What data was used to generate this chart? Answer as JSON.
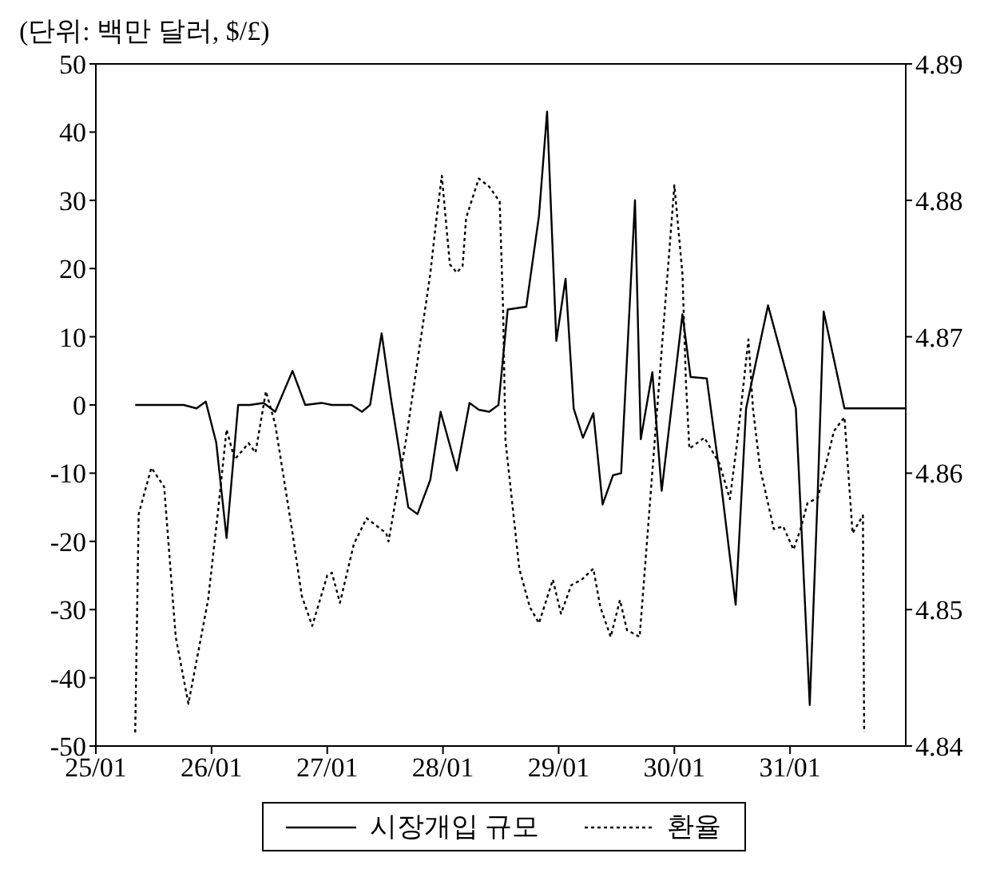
{
  "chart_data": {
    "type": "line",
    "annotations": [
      "(단위: 백만 달러, $/£)"
    ],
    "xlim": [
      "--01-25",
      "--02-01"
    ],
    "xticks": [
      {
        "value": "--01-25",
        "label": "25/01"
      },
      {
        "value": "--01-26",
        "label": "26/01"
      },
      {
        "value": "--01-27",
        "label": "27/01"
      },
      {
        "value": "--01-28",
        "label": "28/01"
      },
      {
        "value": "--01-29",
        "label": "29/01"
      },
      {
        "value": "--01-30",
        "label": "30/01"
      },
      {
        "value": "--01-31",
        "label": "31/01"
      }
    ],
    "ylim": [
      -50,
      50
    ],
    "yticks": [
      -50,
      -40,
      -30,
      -20,
      -10,
      0,
      10,
      20,
      30,
      40,
      50
    ],
    "y2lim": [
      4.84,
      4.89
    ],
    "y2ticks": [
      4.84,
      4.85,
      4.86,
      4.87,
      4.88,
      4.89
    ],
    "grid": false,
    "legend": "bottom",
    "marker": "none",
    "series": [
      {
        "name": "시장개입 규모",
        "color": "#000000",
        "line_style": "solid",
        "x": [
          "--01-25T08:10",
          "--01-25T18:14",
          "--01-25T20:53",
          "--01-25T22:48",
          "--01-26T00:58",
          "--01-26T03:07",
          "--01-26T05:31",
          "--01-26T07:55",
          "--01-26T10:48",
          "--01-26T13:12",
          "--01-26T16:48",
          "--01-26T19:26",
          "--01-26T22:48",
          "--01-27T00:58",
          "--01-27T05:02",
          "--01-27T07:12",
          "--01-27T08:53",
          "--01-27T11:17",
          "--01-27T13:12",
          "--01-27T16:48",
          "--01-27T18:43",
          "--01-27T21:22",
          "--01-27T23:31",
          "--01-28T02:53",
          "--01-28T05:31",
          "--01-28T07:26",
          "--01-28T09:36",
          "--01-28T11:31",
          "--01-28T13:26",
          "--01-28T17:17",
          "--01-28T19:55",
          "--01-28T21:36",
          "--01-28T23:31",
          "--01-29T01:26",
          "--01-29T03:07",
          "--01-29T05:02",
          "--01-29T07:12",
          "--01-29T09:07",
          "--01-29T11:17",
          "--01-29T12:58",
          "--01-29T15:50",
          "--01-29T17:02",
          "--01-29T19:26",
          "--01-29T21:22",
          "--01-30T01:41",
          "--01-30T03:22",
          "--01-30T06:43",
          "--01-30T09:50",
          "--01-30T12:43",
          "--01-30T14:53",
          "--01-30T19:26",
          "--01-31T01:12",
          "--01-31T04:05",
          "--01-31T05:46",
          "--01-31T06:58",
          "--01-31T11:17",
          "--02-01T00:00"
        ],
        "values": [
          0,
          0,
          -0.5,
          0.5,
          -5.5,
          -19.5,
          0,
          0,
          0.3,
          -1,
          5,
          0,
          0.3,
          0,
          0,
          -1,
          0,
          10.5,
          1,
          -15,
          -16,
          -11,
          -1,
          -9.6,
          0.3,
          -0.7,
          -1,
          0,
          14,
          14.4,
          27.7,
          43,
          9.4,
          18.5,
          -0.5,
          -4.8,
          -1.2,
          -14.6,
          -10.3,
          -10,
          30,
          -5,
          4.8,
          -12.6,
          13.3,
          4.1,
          3.9,
          -12.4,
          -29.3,
          -0.5,
          14.6,
          -0.5,
          -44,
          -12.4,
          13.7,
          -0.5,
          -0.5
        ]
      },
      {
        "name": "환율",
        "color": "#000000",
        "line_style": "dotted",
        "axis": "y2",
        "x": [
          "--01-25T08:10",
          "--01-25T08:53",
          "--01-25T11:31",
          "--01-25T14:10",
          "--01-25T16:34",
          "--01-25T19:12",
          "--01-25T23:17",
          "--01-26T01:26",
          "--01-26T03:07",
          "--01-26T04:48",
          "--01-26T07:41",
          "--01-26T09:07",
          "--01-26T11:17",
          "--01-26T13:12",
          "--01-26T16:48",
          "--01-26T18:43",
          "--01-26T20:53",
          "--01-27T00:00",
          "--01-27T00:58",
          "--01-27T02:38",
          "--01-27T05:31",
          "--01-27T08:10",
          "--01-27T12:14",
          "--01-27T12:43",
          "--01-27T16:19",
          "--01-27T21:22",
          "--01-27T22:34",
          "--01-27T23:46",
          "--01-28T01:26",
          "--01-28T02:53",
          "--01-28T04:05",
          "--01-28T04:48",
          "--01-28T07:26",
          "--01-28T09:36",
          "--01-28T11:46",
          "--01-28T12:29",
          "--01-28T12:58",
          "--01-28T15:50",
          "--01-28T18:00",
          "--01-28T19:55",
          "--01-28T22:48",
          "--01-29T00:29",
          "--01-29T02:38",
          "--01-29T04:48",
          "--01-29T07:12",
          "--01-29T08:38",
          "--01-29T10:48",
          "--01-29T12:43",
          "--01-29T14:10",
          "--01-29T16:48",
          "--01-30T00:00",
          "--01-30T01:41",
          "--01-30T02:24",
          "--01-30T03:07",
          "--01-30T06:14",
          "--01-30T09:22",
          "--01-30T11:31",
          "--01-30T12:58",
          "--01-30T15:22",
          "--01-30T16:19",
          "--01-30T17:46",
          "--01-30T20:38",
          "--01-30T22:34",
          "--01-31T00:43",
          "--01-31T02:10",
          "--01-31T03:36",
          "--01-31T05:46",
          "--01-31T09:07",
          "--01-31T11:17",
          "--01-31T12:58",
          "--01-31T15:07",
          "--01-31T15:22"
        ],
        "values": [
          4.841,
          4.857,
          4.8604,
          4.859,
          4.848,
          4.8431,
          4.8507,
          4.8575,
          4.8632,
          4.861,
          4.8622,
          4.8615,
          4.866,
          4.8636,
          4.8556,
          4.851,
          4.8488,
          4.8525,
          4.8527,
          4.8505,
          4.8548,
          4.8567,
          4.8556,
          4.855,
          4.8624,
          4.8746,
          4.8784,
          4.8818,
          4.8753,
          4.8747,
          4.8752,
          4.8787,
          4.8816,
          4.881,
          4.8799,
          4.8719,
          4.8624,
          4.853,
          4.8502,
          4.849,
          4.8522,
          4.8497,
          4.8518,
          4.8522,
          4.853,
          4.8502,
          4.848,
          4.8507,
          4.8485,
          4.848,
          4.8811,
          4.8746,
          4.8667,
          4.8618,
          4.8626,
          4.8607,
          4.8581,
          4.8621,
          4.8698,
          4.8647,
          4.8604,
          4.8559,
          4.8561,
          4.8544,
          4.8559,
          4.8578,
          4.8582,
          4.8631,
          4.8641,
          4.8556,
          4.8569,
          4.841
        ]
      }
    ]
  }
}
